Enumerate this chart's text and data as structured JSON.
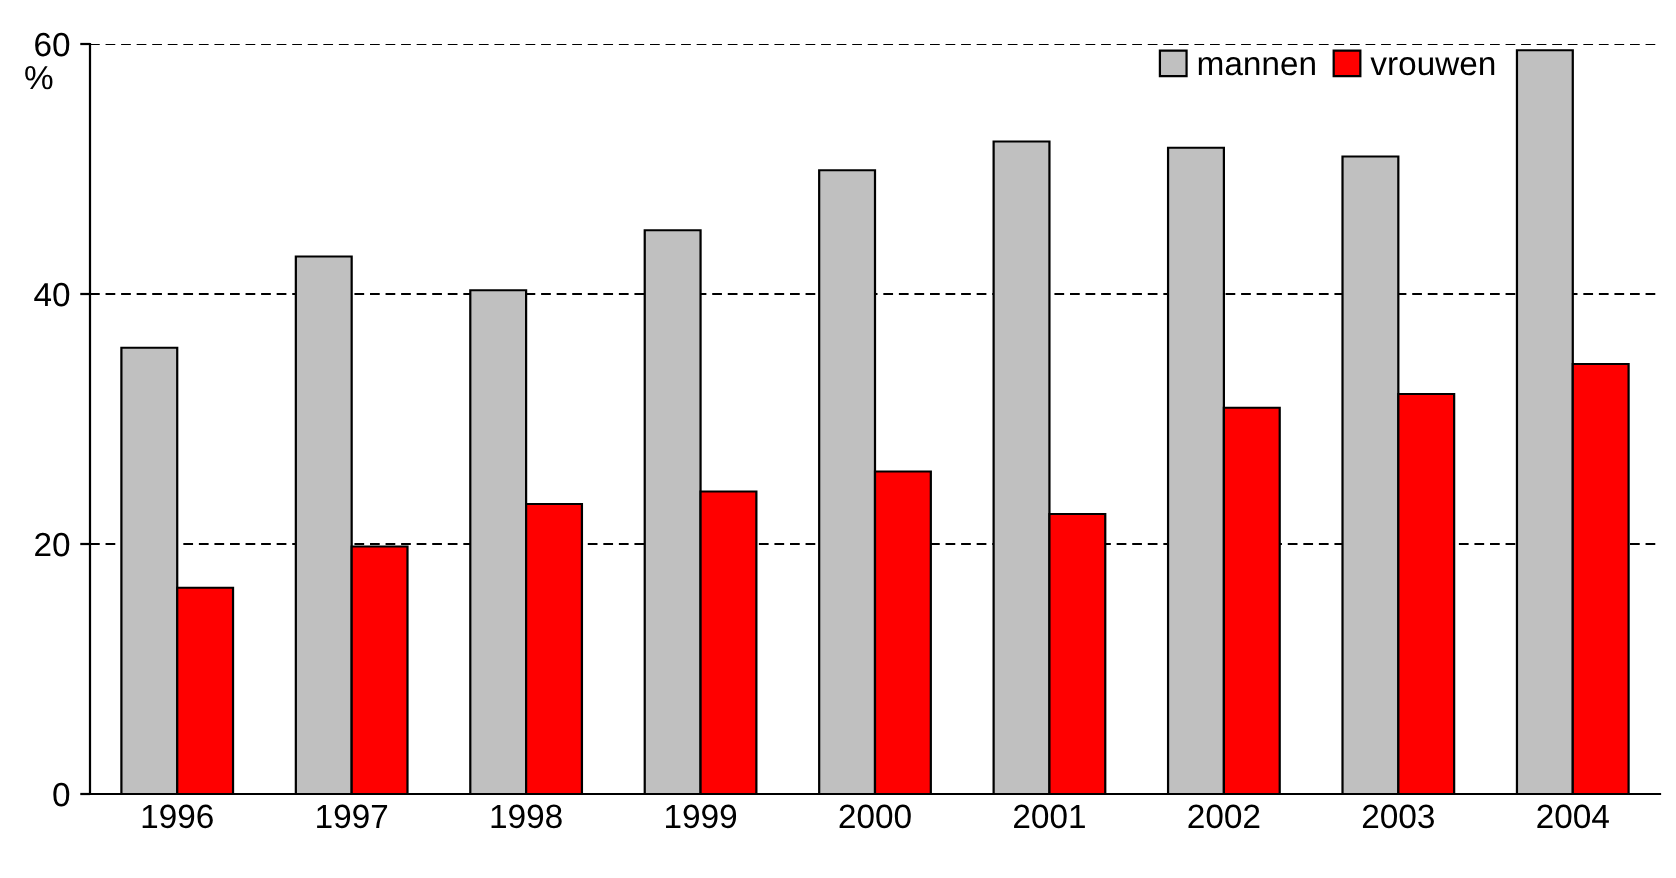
{
  "chart_data": {
    "type": "bar",
    "ylabel": "%",
    "categories": [
      "1996",
      "1997",
      "1998",
      "1999",
      "2000",
      "2001",
      "2002",
      "2003",
      "2004"
    ],
    "series": [
      {
        "name": "mannen",
        "color": "#c0c0c0",
        "values": [
          35.7,
          43.0,
          40.3,
          45.1,
          49.9,
          52.2,
          51.7,
          51.0,
          59.5
        ]
      },
      {
        "name": "vrouwen",
        "color": "#ff0000",
        "values": [
          16.5,
          19.8,
          23.2,
          24.2,
          25.8,
          22.4,
          30.9,
          32.0,
          34.4
        ]
      }
    ],
    "ylim": [
      0,
      60
    ],
    "yticks": [
      0,
      20,
      40,
      60
    ],
    "grid": "y",
    "legend": "top right"
  }
}
